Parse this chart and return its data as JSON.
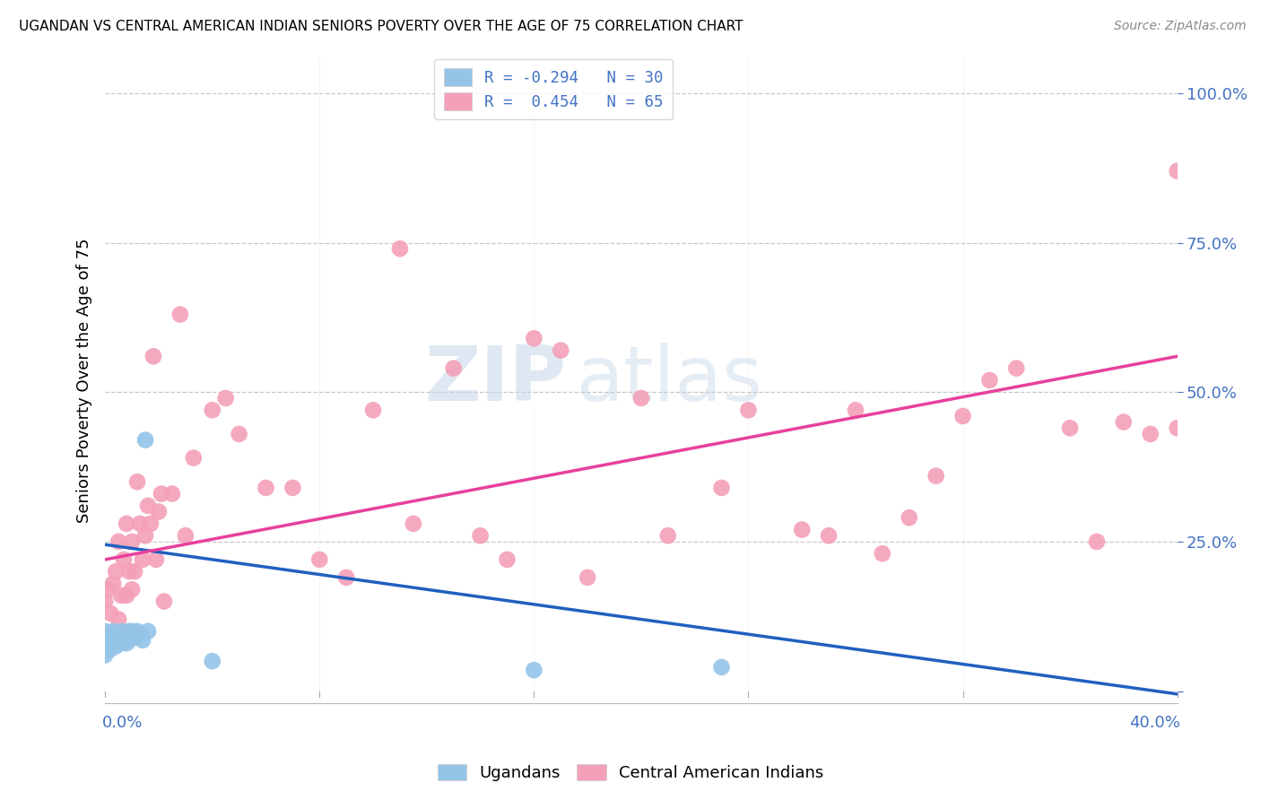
{
  "title": "UGANDAN VS CENTRAL AMERICAN INDIAN SENIORS POVERTY OVER THE AGE OF 75 CORRELATION CHART",
  "source": "Source: ZipAtlas.com",
  "ylabel": "Seniors Poverty Over the Age of 75",
  "y_ticks": [
    0.0,
    0.25,
    0.5,
    0.75,
    1.0
  ],
  "y_tick_labels": [
    "",
    "25.0%",
    "50.0%",
    "75.0%",
    "100.0%"
  ],
  "x_range": [
    0.0,
    0.4
  ],
  "y_range": [
    -0.02,
    1.06
  ],
  "watermark_zip": "ZIP",
  "watermark_atlas": "atlas",
  "legend_ugandan": "R = -0.294   N = 30",
  "legend_central": "R =  0.454   N = 65",
  "ugandan_color": "#94C4E8",
  "central_color": "#F4A0B8",
  "ugandan_line_color": "#2060C0",
  "central_line_color": "#E8409C",
  "background_color": "#FFFFFF",
  "grid_color": "#BBBBBB",
  "tick_color": "#4472C4",
  "ugandan_points_x": [
    0.0,
    0.0,
    0.0,
    0.0,
    0.0,
    0.002,
    0.002,
    0.003,
    0.003,
    0.004,
    0.005,
    0.005,
    0.006,
    0.006,
    0.007,
    0.008,
    0.008,
    0.009,
    0.009,
    0.01,
    0.01,
    0.011,
    0.012,
    0.013,
    0.014,
    0.015,
    0.016,
    0.04,
    0.16,
    0.23
  ],
  "ugandan_points_y": [
    0.06,
    0.07,
    0.08,
    0.09,
    0.1,
    0.07,
    0.09,
    0.08,
    0.1,
    0.075,
    0.085,
    0.095,
    0.08,
    0.1,
    0.09,
    0.08,
    0.095,
    0.085,
    0.1,
    0.09,
    0.1,
    0.09,
    0.1,
    0.095,
    0.085,
    0.42,
    0.1,
    0.05,
    0.035,
    0.04
  ],
  "central_points_x": [
    0.0,
    0.001,
    0.002,
    0.003,
    0.004,
    0.005,
    0.005,
    0.006,
    0.007,
    0.008,
    0.008,
    0.009,
    0.01,
    0.01,
    0.011,
    0.012,
    0.013,
    0.014,
    0.015,
    0.016,
    0.017,
    0.018,
    0.019,
    0.02,
    0.021,
    0.022,
    0.025,
    0.028,
    0.03,
    0.033,
    0.04,
    0.045,
    0.05,
    0.06,
    0.07,
    0.08,
    0.09,
    0.1,
    0.11,
    0.115,
    0.13,
    0.14,
    0.15,
    0.16,
    0.17,
    0.18,
    0.2,
    0.21,
    0.23,
    0.24,
    0.26,
    0.27,
    0.28,
    0.29,
    0.3,
    0.31,
    0.32,
    0.33,
    0.34,
    0.36,
    0.37,
    0.38,
    0.39,
    0.4,
    0.4
  ],
  "central_points_y": [
    0.15,
    0.17,
    0.13,
    0.18,
    0.2,
    0.12,
    0.25,
    0.16,
    0.22,
    0.16,
    0.28,
    0.2,
    0.17,
    0.25,
    0.2,
    0.35,
    0.28,
    0.22,
    0.26,
    0.31,
    0.28,
    0.56,
    0.22,
    0.3,
    0.33,
    0.15,
    0.33,
    0.63,
    0.26,
    0.39,
    0.47,
    0.49,
    0.43,
    0.34,
    0.34,
    0.22,
    0.19,
    0.47,
    0.74,
    0.28,
    0.54,
    0.26,
    0.22,
    0.59,
    0.57,
    0.19,
    0.49,
    0.26,
    0.34,
    0.47,
    0.27,
    0.26,
    0.47,
    0.23,
    0.29,
    0.36,
    0.46,
    0.52,
    0.54,
    0.44,
    0.25,
    0.45,
    0.43,
    0.44,
    0.87
  ],
  "ugandan_line_x": [
    0.0,
    0.4
  ],
  "ugandan_line_y": [
    0.245,
    -0.005
  ],
  "central_line_x": [
    0.0,
    0.4
  ],
  "central_line_y": [
    0.22,
    0.56
  ]
}
